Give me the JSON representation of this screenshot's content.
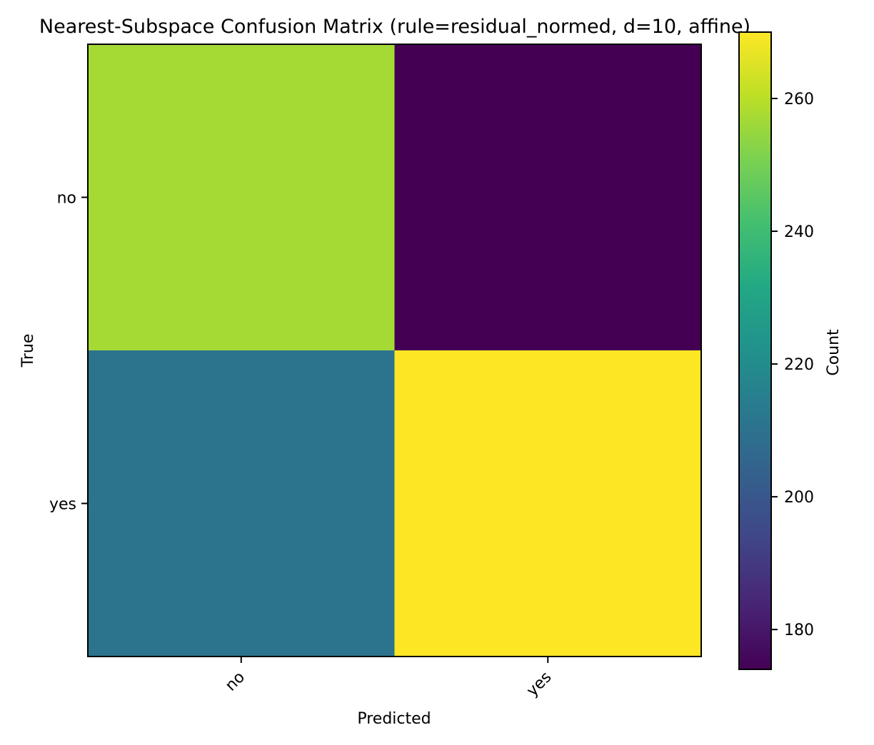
{
  "chart_data": {
    "type": "heatmap",
    "title": "Nearest-Subspace Confusion Matrix (rule=residual_normed, d=10, affine)",
    "xlabel": "Predicted",
    "ylabel": "True",
    "x_categories": [
      "no",
      "yes"
    ],
    "y_categories": [
      "no",
      "yes"
    ],
    "values": [
      [
        257,
        174
      ],
      [
        211,
        270
      ]
    ],
    "colormap": "viridis",
    "colorbar": {
      "label": "Count",
      "range": [
        174,
        270
      ],
      "ticks": [
        "180",
        "200",
        "220",
        "240",
        "260"
      ]
    },
    "legend": "none",
    "grid": false
  }
}
